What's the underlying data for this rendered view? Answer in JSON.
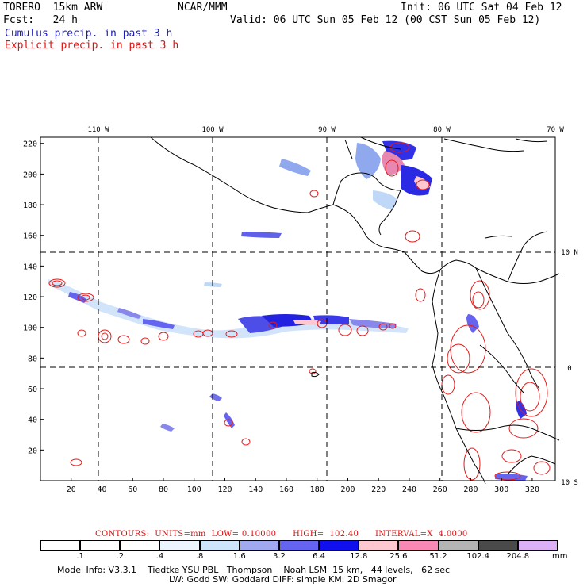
{
  "header": {
    "model": "TORERO  15km ARW",
    "org": "NCAR/MMM",
    "init": "Init: 06 UTC Sat 04 Feb 12",
    "fcst": "Fcst:   24 h",
    "valid": "Valid: 06 UTC Sun 05 Feb 12 (00 CST Sun 05 Feb 12)",
    "cumulus": "Cumulus precip. in past 3 h",
    "explicit": "Explicit precip. in past 3 h"
  },
  "map": {
    "x_ticks": [
      "20",
      "40",
      "60",
      "80",
      "100",
      "120",
      "140",
      "160",
      "180",
      "200",
      "220",
      "240",
      "260",
      "280",
      "300",
      "320"
    ],
    "y_ticks": [
      "20",
      "40",
      "60",
      "80",
      "100",
      "120",
      "140",
      "160",
      "180",
      "200",
      "220"
    ],
    "lon_labels": [
      "110 W",
      "100 W",
      "90 W",
      "80 W",
      "70 W"
    ],
    "lat_labels": [
      "10 N",
      "0",
      "10 S"
    ]
  },
  "footer": {
    "contours": "CONTOURS:  UNITS=mm  LOW= 0.10000      HIGH=  102.40      INTERVAL=X  4.0000",
    "scale_labels": [
      ".1",
      ".2",
      ".4",
      ".8",
      "1.6",
      "3.2",
      "6.4",
      "12.8",
      "25.6",
      "51.2",
      "102.4",
      "204.8"
    ],
    "scale_unit": "mm",
    "scale_colors": [
      "#ffffff",
      "#ffffff",
      "#ffffff",
      "#ebf4ff",
      "#cde4fa",
      "#a0a8f0",
      "#6464f0",
      "#1010ee",
      "#ffc8d0",
      "#f888b4",
      "#b4b4b4",
      "#4a4a4a",
      "#dcb0f4"
    ],
    "model_info_1": "Model Info: V3.3.1    Tiedtke YSU PBL   Thompson    Noah LSM  15 km,   44 levels,   62 sec",
    "model_info_2": "LW: Godd SW: Goddard DIFF: simple KM: 2D Smagor"
  }
}
